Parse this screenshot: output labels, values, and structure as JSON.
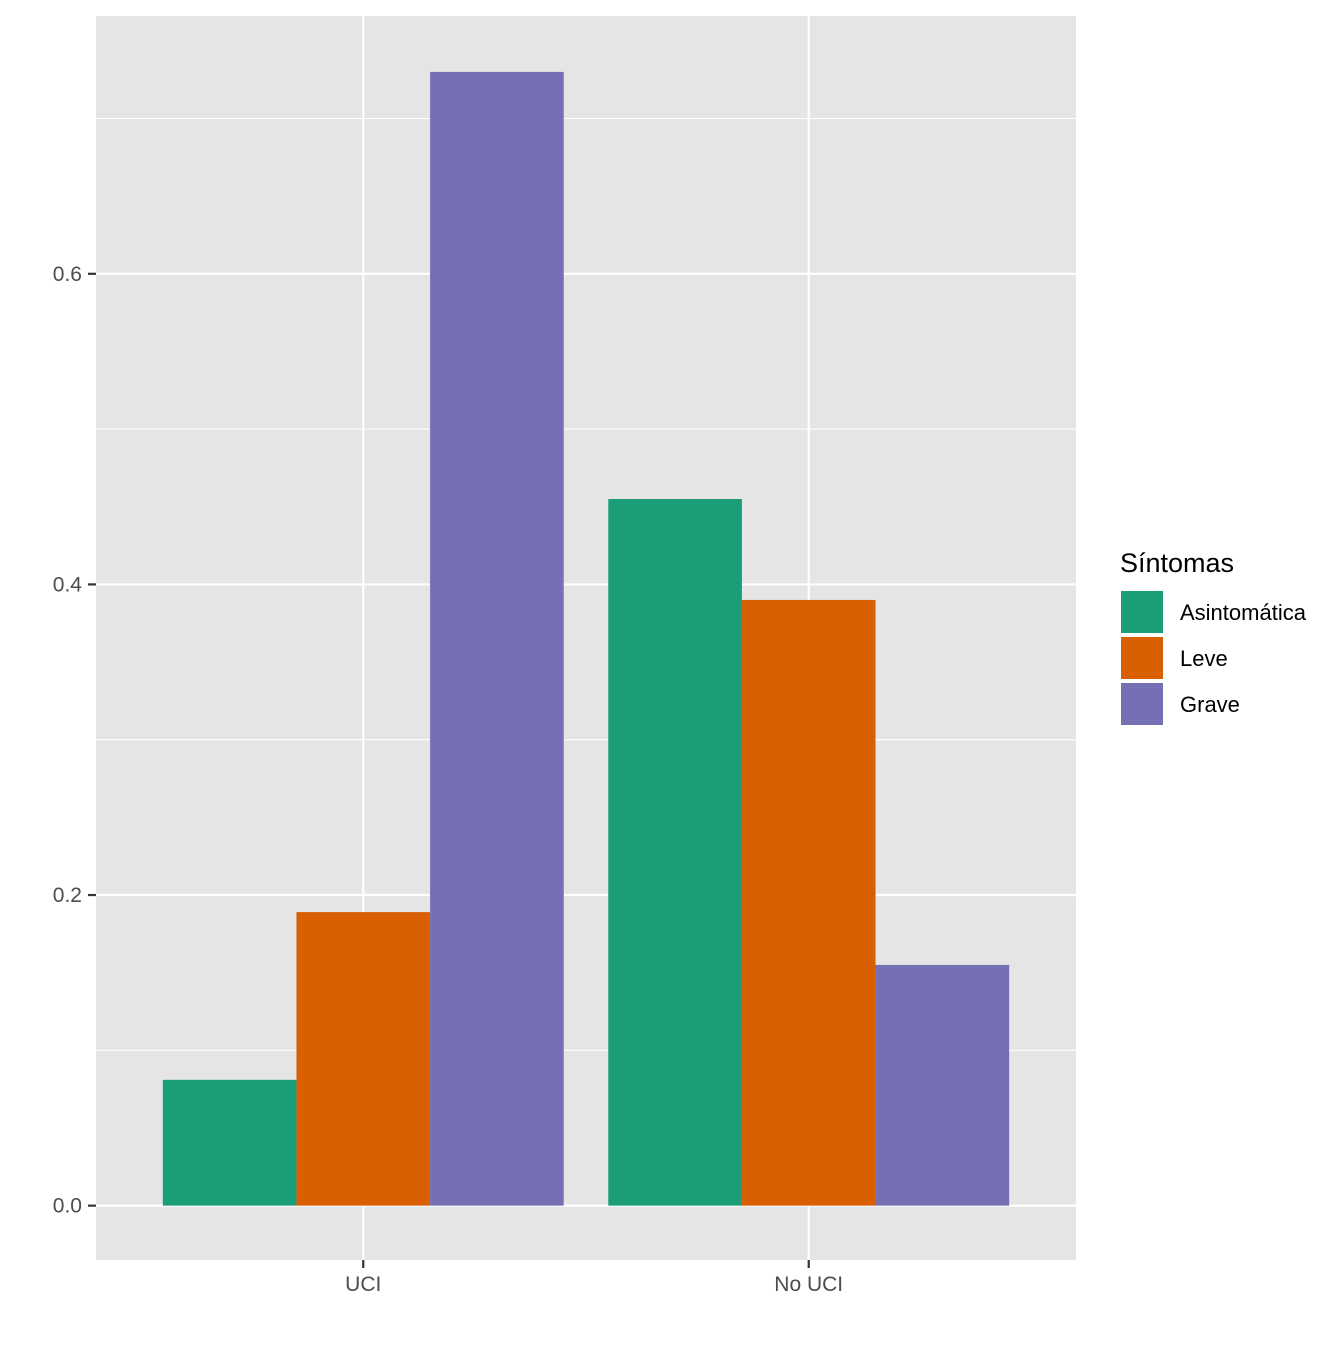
{
  "chart_data": {
    "type": "bar",
    "categories": [
      "UCI",
      "No UCI"
    ],
    "series": [
      {
        "name": "Asintomática",
        "values": [
          0.081,
          0.455
        ],
        "color": "#1B9E77"
      },
      {
        "name": "Leve",
        "values": [
          0.189,
          0.39
        ],
        "color": "#D95F02"
      },
      {
        "name": "Grave",
        "values": [
          0.73,
          0.155
        ],
        "color": "#7570B3"
      }
    ],
    "title": "",
    "xlabel": "",
    "ylabel": "",
    "ylim": [
      -0.035,
      0.766
    ],
    "yticks": [
      0.0,
      0.2,
      0.4,
      0.6
    ],
    "ytick_labels": [
      "0.0",
      "0.2",
      "0.4",
      "0.6"
    ],
    "grid": true,
    "panel_background": "#E5E5E5",
    "legend": {
      "title": "Síntomas",
      "position": "right"
    }
  }
}
